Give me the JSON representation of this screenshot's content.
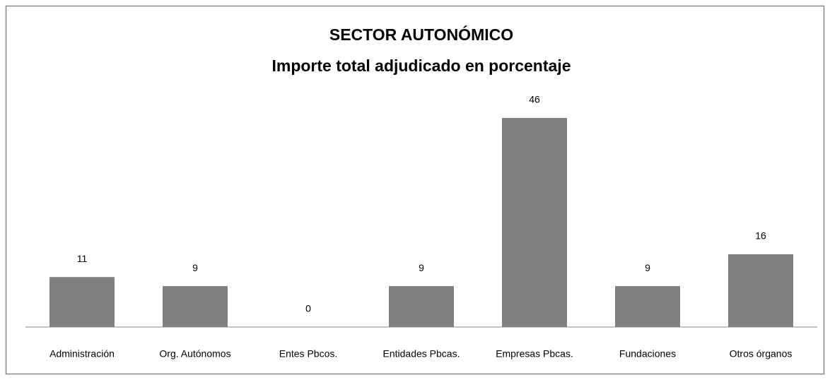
{
  "chart_data": {
    "type": "bar",
    "title": "SECTOR AUTONÓMICO",
    "subtitle": "Importe total adjudicado en porcentaje",
    "categories": [
      "Administración",
      "Org. Autónomos",
      "Entes Pbcos.",
      "Entidades Pbcas.",
      "Empresas Pbcas.",
      "Fundaciones",
      "Otros órganos"
    ],
    "values": [
      11,
      9,
      0,
      9,
      46,
      9,
      16
    ],
    "color": "#808080"
  }
}
